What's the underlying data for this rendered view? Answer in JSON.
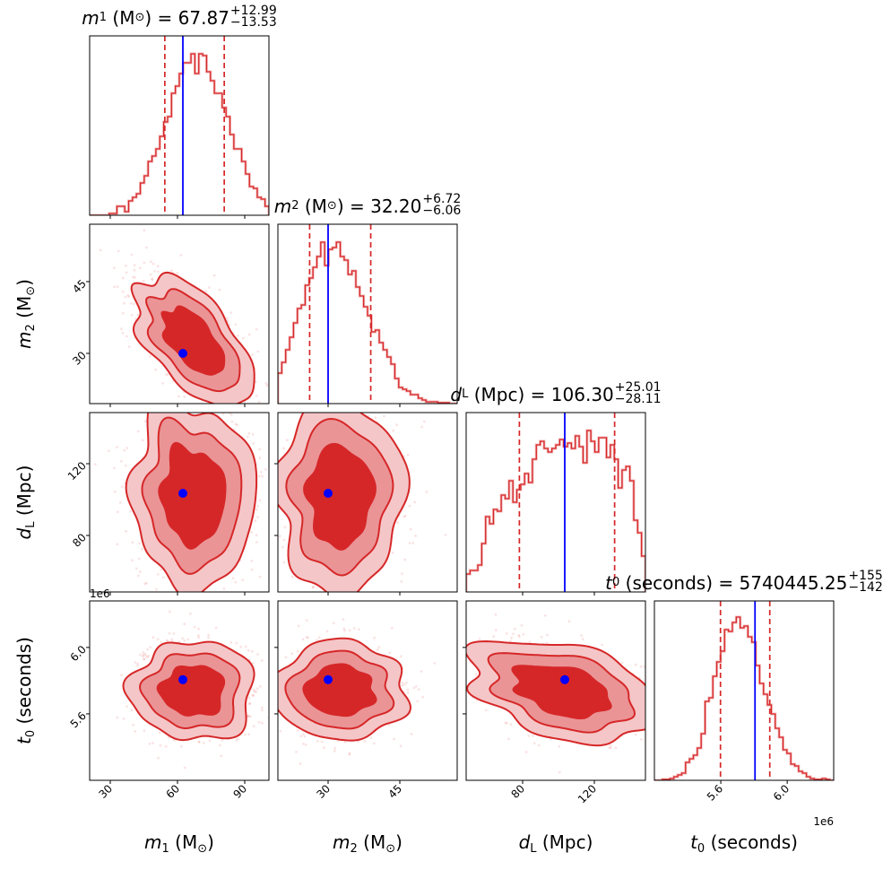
{
  "chart_data": {
    "type": "corner",
    "colors": {
      "posterior": "#d62728",
      "truth": "#0000ff",
      "fill_light": "#f5c6c7",
      "fill_mid": "#ea9496",
      "fill_dark": "#d62728"
    },
    "offset_label": "1e6",
    "parameters": [
      {
        "key": "m1",
        "symbol": "m",
        "sub": "1",
        "unit_pre": "(M",
        "unit_sub": "⊙",
        "unit_post": ")",
        "title_value": "67.87",
        "err_plus": "+12.99",
        "err_minus": "−13.53",
        "range": [
          20.8,
          100.8
        ],
        "ticks": [
          30,
          60,
          90
        ],
        "tick_labels": [
          "30",
          "60",
          "90"
        ],
        "truth": 62.4,
        "mean": 67.0,
        "sd": 13.0,
        "quantiles": [
          54.34,
          80.86
        ],
        "hist": [
          0,
          0,
          0,
          0,
          0,
          0.01,
          0.01,
          0.05,
          0.05,
          0.02,
          0.08,
          0.1,
          0.12,
          0.18,
          0.22,
          0.3,
          0.33,
          0.37,
          0.44,
          0.52,
          0.55,
          0.68,
          0.72,
          0.79,
          0.85,
          0.85,
          0.9,
          0.79,
          0.9,
          0.89,
          0.8,
          0.75,
          0.68,
          0.68,
          0.6,
          0.55,
          0.45,
          0.37,
          0.37,
          0.3,
          0.23,
          0.16,
          0.15,
          0.1,
          0.09,
          0.05
        ]
      },
      {
        "key": "m2",
        "symbol": "m",
        "sub": "2",
        "unit_pre": "(M",
        "unit_sub": "⊙",
        "unit_post": ")",
        "title_value": "32.20",
        "err_plus": "+6.72",
        "err_minus": "−6.06",
        "range": [
          19.5,
          57.0
        ],
        "ticks": [
          30,
          45
        ],
        "tick_labels": [
          "30",
          "45"
        ],
        "truth": 30.0,
        "mean": 32.5,
        "sd": 6.5,
        "quantiles": [
          26.14,
          38.92
        ],
        "hist": [
          0.17,
          0.23,
          0.3,
          0.37,
          0.45,
          0.53,
          0.55,
          0.66,
          0.7,
          0.76,
          0.82,
          0.9,
          0.77,
          0.86,
          0.87,
          0.9,
          0.82,
          0.8,
          0.72,
          0.74,
          0.65,
          0.6,
          0.54,
          0.49,
          0.4,
          0.41,
          0.34,
          0.3,
          0.26,
          0.22,
          0.14,
          0.09,
          0.08,
          0.07,
          0.05,
          0.05,
          0.03,
          0.02,
          0.01,
          0.01,
          0.01,
          0.005,
          0.005,
          0.005,
          0,
          0
        ]
      },
      {
        "key": "dL",
        "symbol": "d",
        "sub": "L",
        "unit_pre": "(Mpc)",
        "unit_sub": "",
        "unit_post": "",
        "title_value": "106.30",
        "err_plus": "+25.01",
        "err_minus": "−28.11",
        "range": [
          48.5,
          148.5
        ],
        "ticks": [
          80,
          120
        ],
        "tick_labels": [
          "80",
          "120"
        ],
        "truth": 103.5,
        "mean": 102.0,
        "sd": 25.0,
        "quantiles": [
          78.19,
          131.31
        ],
        "hist": [
          0.1,
          0.12,
          0.12,
          0.15,
          0.27,
          0.42,
          0.38,
          0.46,
          0.45,
          0.54,
          0.52,
          0.62,
          0.5,
          0.57,
          0.6,
          0.66,
          0.61,
          0.74,
          0.82,
          0.84,
          0.8,
          0.78,
          0.8,
          0.82,
          0.85,
          0.81,
          0.83,
          0.8,
          0.87,
          0.81,
          0.72,
          0.9,
          0.84,
          0.78,
          0.86,
          0.86,
          0.75,
          0.82,
          0.74,
          0.58,
          0.68,
          0.7,
          0.62,
          0.4,
          0.33,
          0.2
        ]
      },
      {
        "key": "t0",
        "symbol": "t",
        "sub": "0",
        "unit_pre": "(seconds)",
        "unit_sub": "",
        "unit_post": "",
        "title_value": "5740445.25",
        "err_plus": "+155",
        "err_minus": "−142",
        "range": [
          5.2,
          6.28
        ],
        "range_scale": "1e6",
        "ticks": [
          5.6,
          6.0
        ],
        "tick_labels": [
          "5.6",
          "6.0"
        ],
        "truth": 5.806,
        "mean": 5.74,
        "sd": 0.145,
        "quantiles": [
          5.598,
          5.895
        ],
        "hist": [
          0,
          0,
          0.005,
          0.005,
          0.01,
          0.02,
          0.03,
          0.04,
          0.1,
          0.12,
          0.14,
          0.18,
          0.26,
          0.44,
          0.46,
          0.58,
          0.66,
          0.72,
          0.84,
          0.83,
          0.88,
          0.91,
          0.85,
          0.86,
          0.8,
          0.77,
          0.64,
          0.54,
          0.48,
          0.42,
          0.37,
          0.29,
          0.24,
          0.17,
          0.15,
          0.09,
          0.08,
          0.05,
          0.04,
          0.02,
          0.01,
          0.005,
          0.005,
          0.01,
          0.005,
          0
        ]
      }
    ],
    "correlations": {
      "m1-m2": -0.6,
      "m1-dL": 0.0,
      "m2-dL": 0.0,
      "m1-t0": 0.0,
      "m2-t0": 0.0,
      "dL-t0": -0.35
    },
    "contour_sigma_levels": [
      1.1,
      1.6,
      2.1
    ]
  }
}
